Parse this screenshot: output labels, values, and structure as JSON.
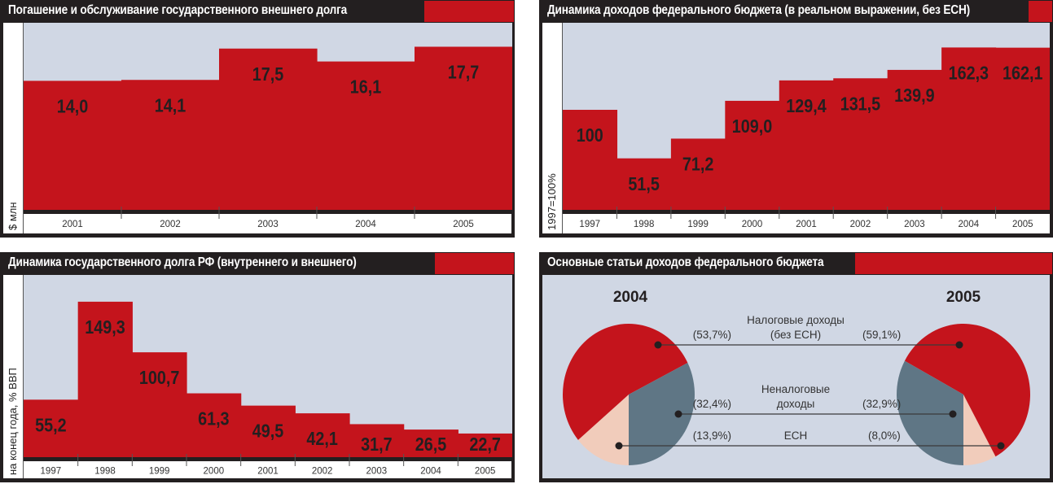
{
  "colors": {
    "bar": "#c4141c",
    "plot_bg": "#d0d7e4",
    "frame": "#231f20",
    "tax": "#c4141c",
    "nontax": "#5f7685",
    "ech": "#f1ccbb"
  },
  "chart_data": [
    {
      "type": "bar",
      "title": "Погашение и обслуживание государственного внешнего долга",
      "ylabel": "$ млн",
      "xlabel": "",
      "categories": [
        "2001",
        "2002",
        "2003",
        "2004",
        "2005"
      ],
      "values": [
        14.0,
        14.1,
        17.5,
        16.1,
        17.7
      ],
      "labels": [
        "14,0",
        "14,1",
        "17,5",
        "16,1",
        "17,7"
      ],
      "ylim": [
        0,
        20.3
      ]
    },
    {
      "type": "bar",
      "title": "Динамика доходов федерального бюджета (в реальном выражении, без ЕСН)",
      "ylabel": "1997=100%",
      "xlabel": "",
      "categories": [
        "1997",
        "1998",
        "1999",
        "2000",
        "2001",
        "2002",
        "2003",
        "2004",
        "2005"
      ],
      "values": [
        100,
        51.5,
        71.2,
        109.0,
        129.4,
        131.5,
        139.9,
        162.3,
        162.1
      ],
      "labels": [
        "100",
        "51,5",
        "71,2",
        "109,0",
        "129,4",
        "131,5",
        "139,9",
        "162,3",
        "162,1"
      ],
      "ylim": [
        0,
        187
      ]
    },
    {
      "type": "bar",
      "title": "Динамика государственного долга РФ (внутреннего и внешнего)",
      "ylabel": "на конец года, % ВВП",
      "xlabel": "",
      "categories": [
        "1997",
        "1998",
        "1999",
        "2000",
        "2001",
        "2002",
        "2003",
        "2004",
        "2005"
      ],
      "values": [
        55.2,
        149.3,
        100.7,
        61.3,
        49.5,
        42.1,
        31.7,
        26.5,
        22.7
      ],
      "labels": [
        "55,2",
        "149,3",
        "100,7",
        "61,3",
        "49,5",
        "42,1",
        "31,7",
        "26,5",
        "22,7"
      ],
      "ylim": [
        0,
        175
      ]
    },
    {
      "type": "pie",
      "title": "Основные статьи доходов федерального бюджета",
      "years": [
        "2004",
        "2005"
      ],
      "categories": [
        {
          "name": "Налоговые доходы",
          "name2": "(без ЕСН)",
          "key": "tax"
        },
        {
          "name": "Неналоговые",
          "name2": "доходы",
          "key": "nontax"
        },
        {
          "name": "ЕСН",
          "name2": "",
          "key": "ech"
        }
      ],
      "series": [
        {
          "name": "2004",
          "values": [
            53.7,
            32.4,
            13.9
          ],
          "labels": [
            "(53,7%)",
            "(32,4%)",
            "(13,9%)"
          ]
        },
        {
          "name": "2005",
          "values": [
            59.1,
            32.9,
            8.0
          ],
          "labels": [
            "(59,1%)",
            "(32,9%)",
            "(8,0%)"
          ]
        }
      ]
    }
  ]
}
